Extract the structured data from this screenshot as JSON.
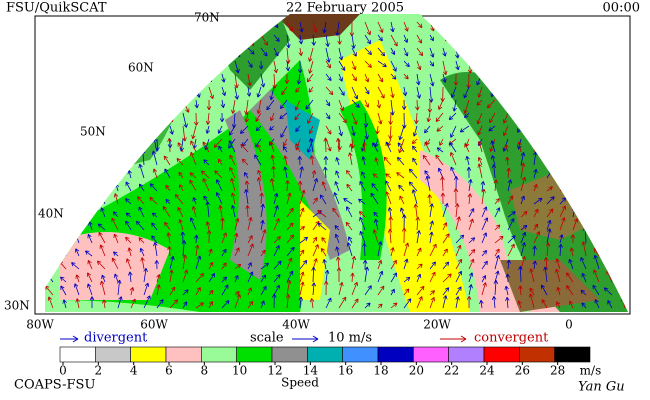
{
  "header": {
    "left": "FSU/QuikSCAT",
    "date": "22 February 2005",
    "time": "00:00"
  },
  "map": {
    "lat_labels": [
      "70N",
      "60N",
      "50N",
      "40N",
      "30N"
    ],
    "lon_labels": [
      "80W",
      "60W",
      "40W",
      "20W",
      "0"
    ]
  },
  "legend": {
    "divergent": "divergent",
    "scale": "scale",
    "scale_value": "10 m/s",
    "convergent": "convergent"
  },
  "colorbar": {
    "ticks": [
      0,
      2,
      4,
      6,
      8,
      10,
      12,
      14,
      16,
      18,
      20,
      22,
      24,
      26,
      28
    ],
    "unit": "m/s",
    "label": "Speed",
    "colors": [
      "#ffffff",
      "#c8c8c8",
      "#ffff00",
      "#ffc0c0",
      "#98fb98",
      "#00e000",
      "#909090",
      "#00b0b0",
      "#4090ff",
      "#0000c0",
      "#ff60ff",
      "#b080ff",
      "#ff0000",
      "#c03000",
      "#000000"
    ]
  },
  "footer": {
    "left": "COAPS-FSU",
    "right": "Yan Gu"
  }
}
